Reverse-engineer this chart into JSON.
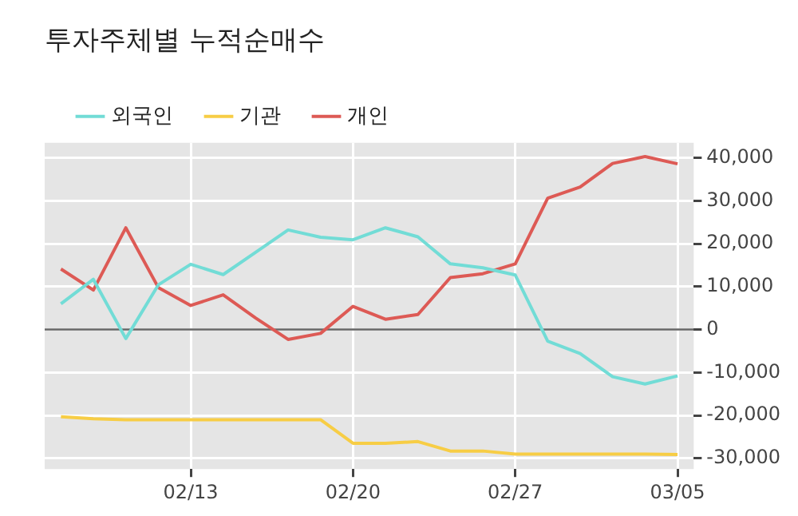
{
  "chart_data": {
    "type": "line",
    "title": "투자주체별 누적순매수",
    "categories": [
      null,
      null,
      null,
      null,
      "02/13",
      null,
      null,
      null,
      null,
      "02/20",
      null,
      null,
      null,
      null,
      "02/27",
      null,
      null,
      null,
      null,
      "03/05"
    ],
    "series": [
      {
        "name": "외국인",
        "color": "#72dcd6",
        "values": [
          6000,
          11700,
          -2100,
          10400,
          15200,
          12800,
          18000,
          23200,
          21500,
          20900,
          23700,
          21600,
          15300,
          14400,
          12700,
          -2700,
          -5600,
          -11000,
          -12700,
          -10800
        ]
      },
      {
        "name": "기관",
        "color": "#f7cd45",
        "values": [
          -20300,
          -20800,
          -21000,
          -21000,
          -21000,
          -21000,
          -21000,
          -21000,
          -21000,
          -26500,
          -26500,
          -26100,
          -28300,
          -28300,
          -29000,
          -29000,
          -29000,
          -29000,
          -29000,
          -29100
        ]
      },
      {
        "name": "개인",
        "color": "#dd5a55",
        "values": [
          14100,
          9200,
          23700,
          9800,
          5600,
          8100,
          2700,
          -2300,
          -900,
          5400,
          2400,
          3500,
          12100,
          13000,
          15300,
          30600,
          33200,
          38700,
          40300,
          38600
        ]
      }
    ],
    "ylim": [
      -32500,
      43500
    ],
    "yticks": [
      {
        "value": -30000,
        "label": "-30,000"
      },
      {
        "value": -20000,
        "label": "-20,000"
      },
      {
        "value": -10000,
        "label": "-10,000"
      },
      0,
      {
        "value": 10000,
        "label": "10,000"
      },
      {
        "value": 20000,
        "label": "20,000"
      },
      {
        "value": 30000,
        "label": "30,000"
      },
      {
        "value": 40000,
        "label": "40,000"
      }
    ],
    "ref_lines": [
      {
        "axis": "y",
        "value": 0,
        "color": "#666666"
      }
    ],
    "grid": true,
    "legend": "top left",
    "marker": "none",
    "line_style": "solid"
  }
}
